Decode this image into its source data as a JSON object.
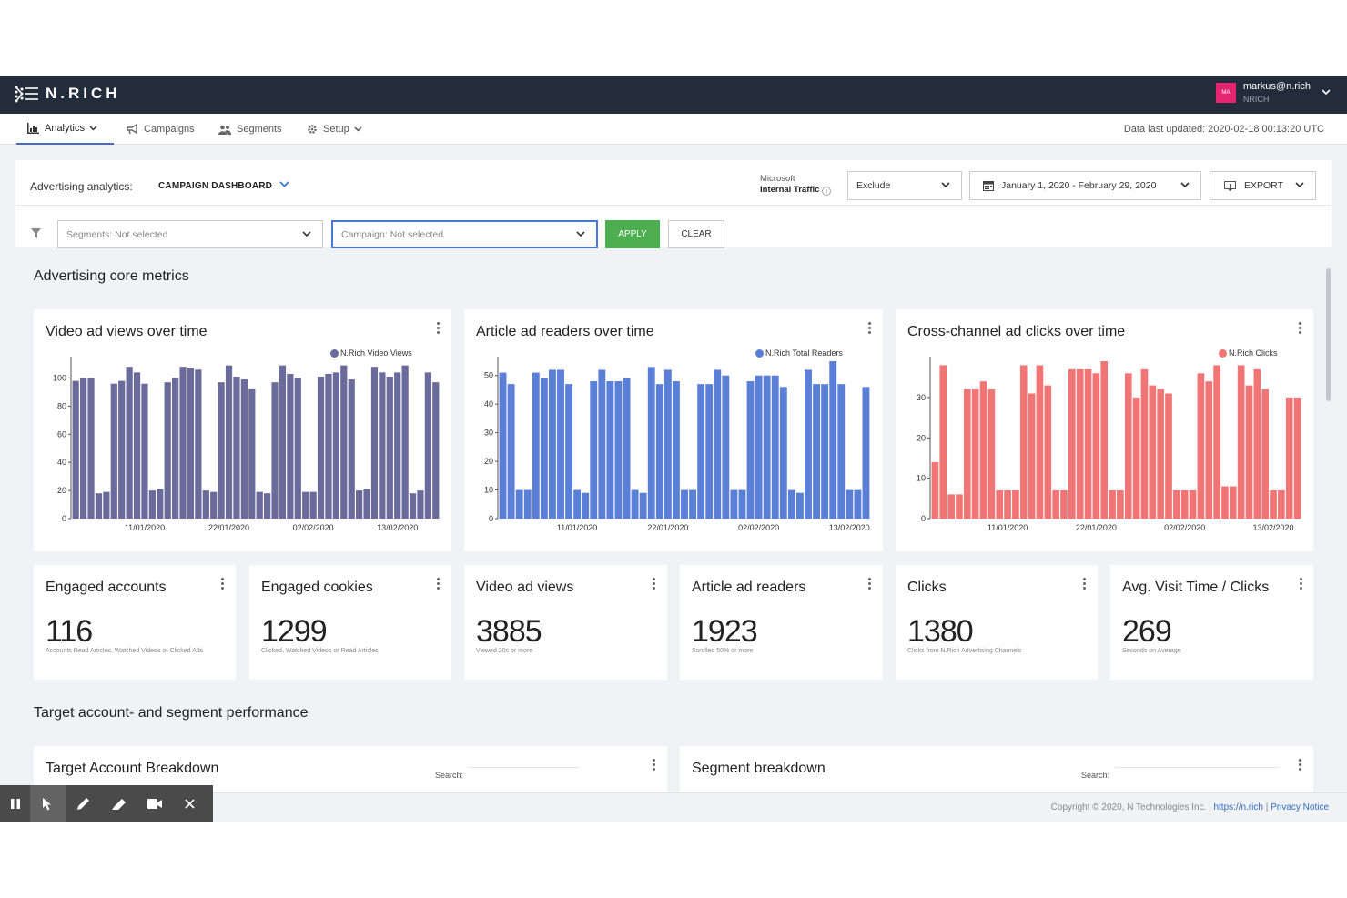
{
  "brand": {
    "name": "N.RICH"
  },
  "user": {
    "email": "markus@n.rich",
    "org": "NRICH",
    "initials": "MA"
  },
  "nav": {
    "items": [
      {
        "label": "Analytics"
      },
      {
        "label": "Campaigns"
      },
      {
        "label": "Segments"
      },
      {
        "label": "Setup"
      }
    ],
    "data_updated": "Data last updated: 2020-02-18 00:13:20 UTC"
  },
  "header": {
    "label": "Advertising analytics:",
    "dashboard": "CAMPAIGN DASHBOARD",
    "ms_line1": "Microsoft",
    "ms_line2": "Internal Traffic",
    "traffic_select": "Exclude",
    "date_range": "January 1, 2020 - February 29, 2020",
    "export_label": "EXPORT"
  },
  "filters": {
    "segments_placeholder": "Segments: Not selected",
    "campaign_placeholder": "Campaign: Not selected",
    "apply_label": "APPLY",
    "clear_label": "CLEAR"
  },
  "sections": {
    "core_metrics": "Advertising core metrics",
    "performance": "Target account- and segment performance"
  },
  "chart_data": [
    {
      "type": "bar",
      "title": "Video ad views over time",
      "legend": "N.Rich Video Views",
      "color": "#6a6a9b",
      "ylim": [
        0,
        112
      ],
      "yticks": [
        0,
        20,
        40,
        60,
        80,
        100
      ],
      "x_ticks": [
        {
          "index": 9,
          "label": "11/01/2020"
        },
        {
          "index": 20,
          "label": "22/01/2020"
        },
        {
          "index": 31,
          "label": "02/02/2020"
        },
        {
          "index": 42,
          "label": "13/02/2020"
        }
      ],
      "values": [
        98,
        100,
        100,
        18,
        19,
        96,
        98,
        108,
        104,
        96,
        20,
        21,
        97,
        100,
        108,
        107,
        106,
        20,
        19,
        97,
        109,
        101,
        99,
        92,
        19,
        18,
        97,
        109,
        103,
        100,
        19,
        19,
        101,
        103,
        104,
        109,
        99,
        20,
        21,
        108,
        104,
        101,
        104,
        109,
        18,
        20,
        104,
        97
      ]
    },
    {
      "type": "bar",
      "title": "Article ad readers over time",
      "legend": "N.Rich Total Readers",
      "color": "#5a7fd6",
      "ylim": [
        0,
        55
      ],
      "yticks": [
        0,
        10,
        20,
        30,
        40,
        50
      ],
      "x_ticks": [
        {
          "index": 9,
          "label": "11/01/2020"
        },
        {
          "index": 20,
          "label": "22/01/2020"
        },
        {
          "index": 31,
          "label": "02/02/2020"
        },
        {
          "index": 42,
          "label": "13/02/2020"
        }
      ],
      "values": [
        51,
        47,
        10,
        10,
        51,
        49,
        52,
        52,
        47,
        10,
        9,
        48,
        52,
        48,
        48,
        49,
        10,
        9,
        53,
        47,
        52,
        48,
        10,
        10,
        47,
        47,
        52,
        50,
        10,
        10,
        48,
        50,
        50,
        50,
        46,
        10,
        9,
        52,
        47,
        47,
        55,
        47,
        10,
        10,
        46
      ]
    },
    {
      "type": "bar",
      "title": "Cross-channel ad clicks over time",
      "legend": "N.Rich Clicks",
      "color": "#f07574",
      "ylim": [
        0,
        39
      ],
      "yticks": [
        0,
        10,
        20,
        30
      ],
      "x_ticks": [
        {
          "index": 9,
          "label": "11/01/2020"
        },
        {
          "index": 20,
          "label": "22/01/2020"
        },
        {
          "index": 31,
          "label": "02/02/2020"
        },
        {
          "index": 42,
          "label": "13/02/2020"
        }
      ],
      "values": [
        14,
        38,
        6,
        6,
        32,
        32,
        34,
        32,
        7,
        7,
        7,
        38,
        31,
        38,
        33,
        7,
        7,
        37,
        37,
        37,
        36,
        39,
        7,
        7,
        36,
        30,
        37,
        33,
        32,
        31,
        7,
        7,
        7,
        36,
        34,
        38,
        8,
        8,
        38,
        33,
        37,
        32,
        7,
        7,
        30,
        30
      ]
    }
  ],
  "kpis": [
    {
      "title": "Engaged accounts",
      "value": "116",
      "sub": "Accounts Read Articles, Watched Videos or Clicked Ads"
    },
    {
      "title": "Engaged cookies",
      "value": "1299",
      "sub": "Clicked, Watched Videos or Read Articles"
    },
    {
      "title": "Video ad views",
      "value": "3885",
      "sub": "Viewed 20s or more"
    },
    {
      "title": "Article ad readers",
      "value": "1923",
      "sub": "Scrolled 50% or more"
    },
    {
      "title": "Clicks",
      "value": "1380",
      "sub": "Clicks from N.Rich Advertising Channels"
    },
    {
      "title": "Avg. Visit Time / Clicks",
      "value": "269",
      "sub": "Seconds on Average"
    }
  ],
  "breakdown": {
    "target_title": "Target Account Breakdown",
    "segment_title": "Segment breakdown",
    "search_label": "Search:"
  },
  "footer": {
    "copyright": "Copyright © 2020, N Technologies Inc. |",
    "link": "https://n.rich",
    "sep": "|",
    "privacy": "Privacy Notice"
  }
}
